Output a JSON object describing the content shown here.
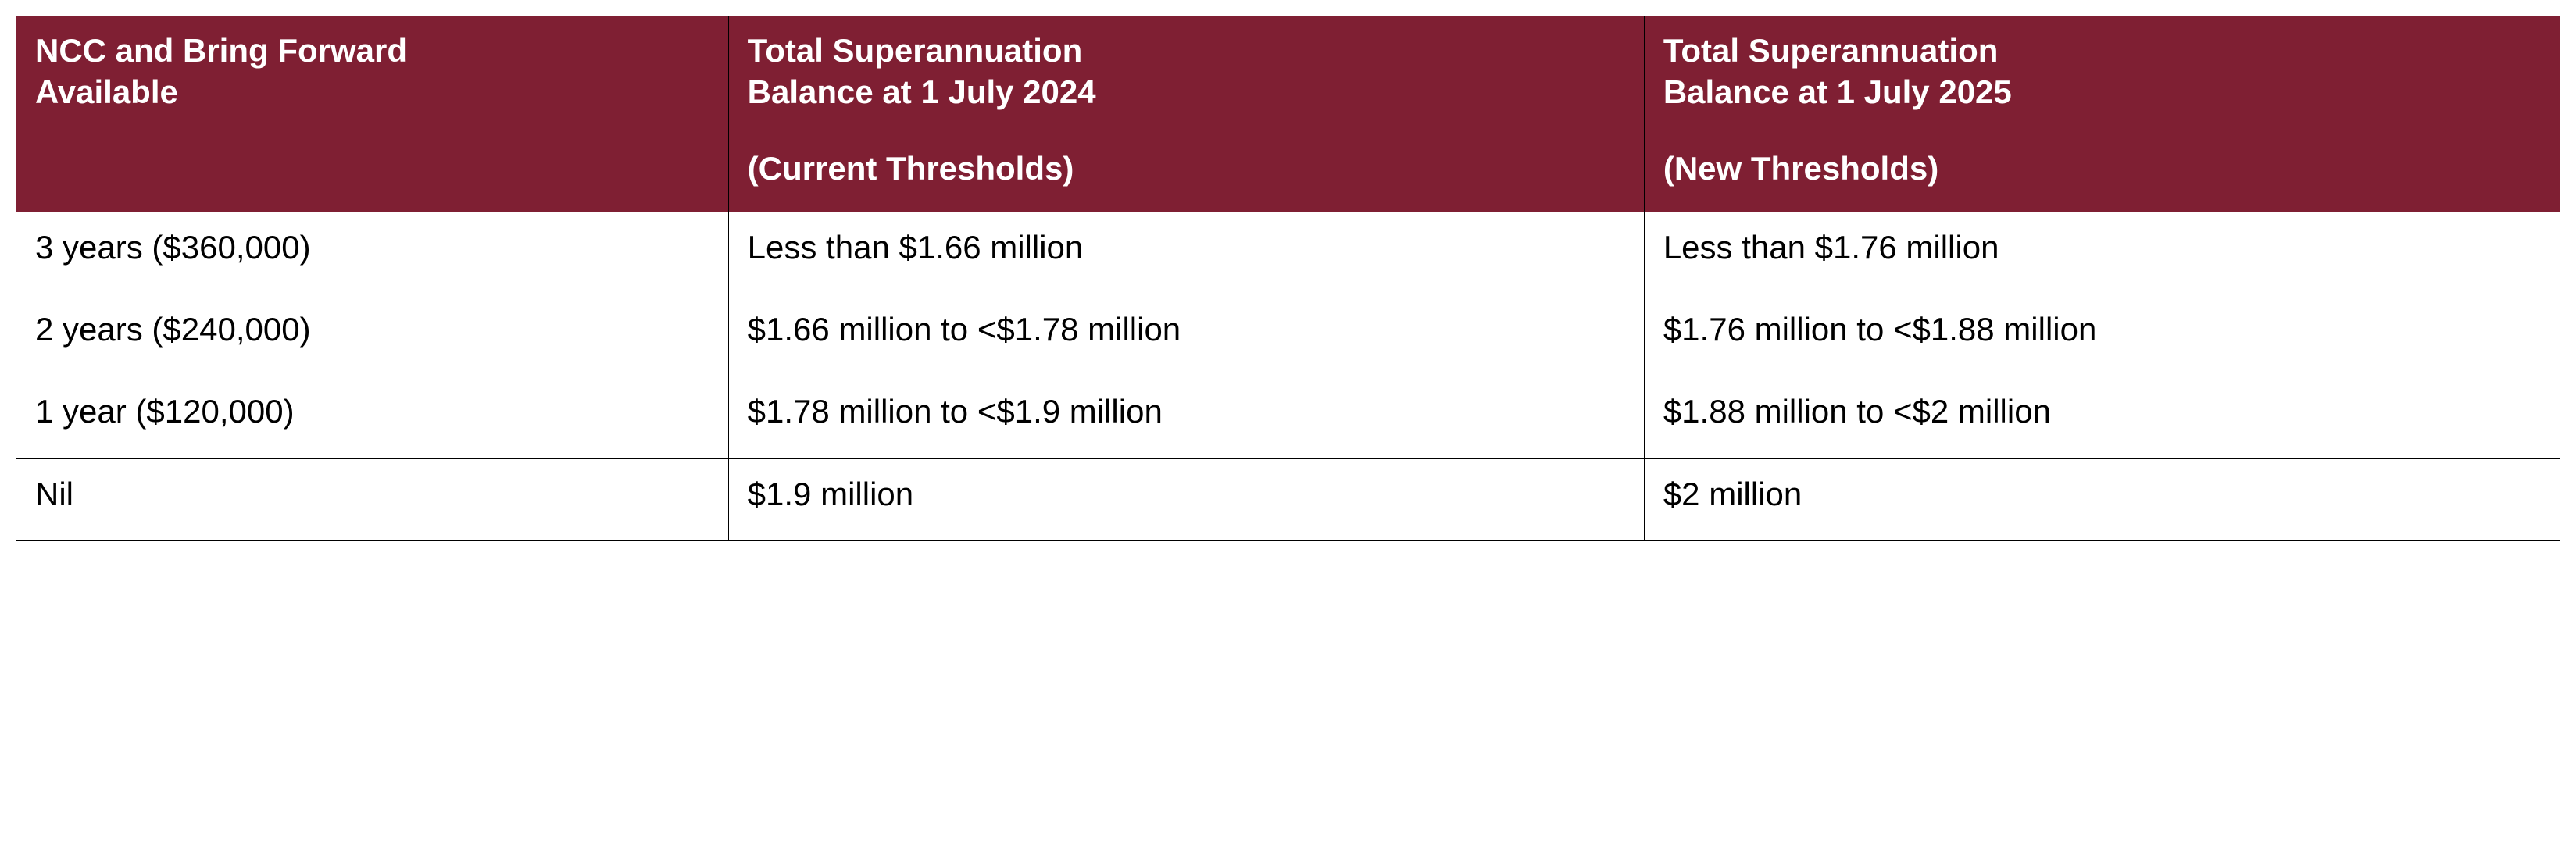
{
  "table": {
    "header_bg": "#7f1f33",
    "header_color": "#ffffff",
    "border_color": "#000000",
    "columns": [
      {
        "line1": "NCC and Bring Forward",
        "line2": "Available",
        "line3": ""
      },
      {
        "line1": "Total Superannuation",
        "line2": "Balance at 1 July 2024",
        "line3": "(Current Thresholds)"
      },
      {
        "line1": "Total Superannuation",
        "line2": "Balance at 1 July 2025",
        "line3": "(New Thresholds)"
      }
    ],
    "rows": [
      {
        "c0": "3 years ($360,000)",
        "c1": "Less than $1.66 million",
        "c2": "Less than $1.76 million"
      },
      {
        "c0": "2 years ($240,000)",
        "c1": "$1.66 million to <$1.78 million",
        "c2": "$1.76 million to <$1.88 million"
      },
      {
        "c0": "1 year ($120,000)",
        "c1": "$1.78 million to <$1.9 million",
        "c2": "$1.88 million to <$2 million"
      },
      {
        "c0": "Nil",
        "c1": "$1.9 million",
        "c2": "$2 million"
      }
    ],
    "col_widths": [
      "28%",
      "36%",
      "36%"
    ]
  }
}
